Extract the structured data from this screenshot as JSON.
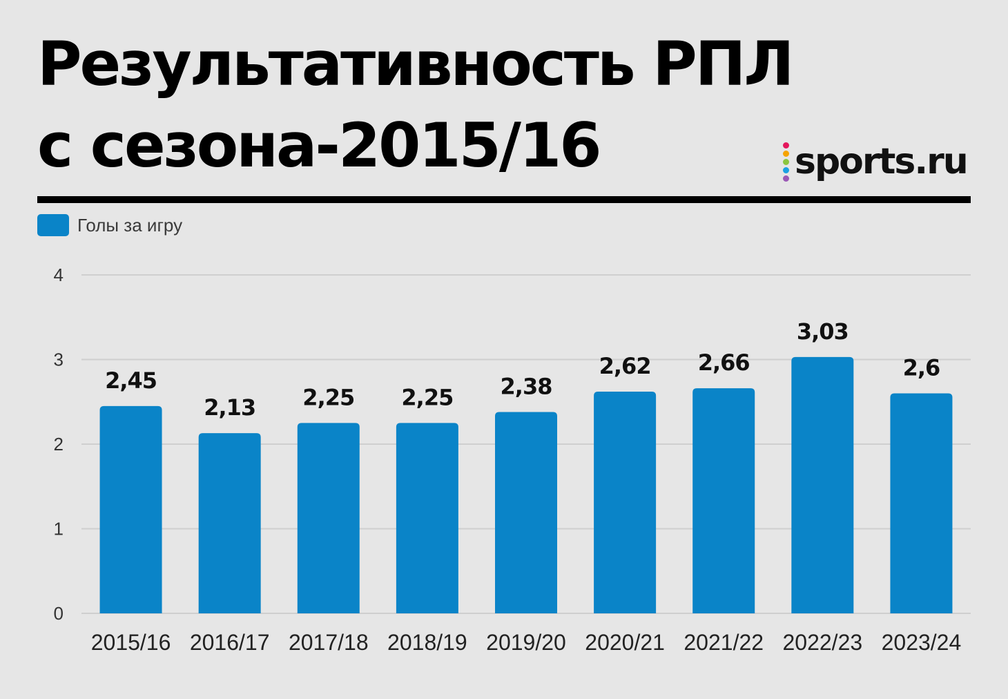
{
  "title_lines": [
    "Результативность РПЛ",
    "с сезона-2015/16"
  ],
  "logo": {
    "text": "sports.ru",
    "dot_colors": [
      "#e4175c",
      "#f5a300",
      "#8cc63f",
      "#1ba1e2",
      "#9b59b6"
    ]
  },
  "colors": {
    "bar": "#0a84c8",
    "grid": "#cfcfcf",
    "rule": "#000000",
    "background": "#e6e6e6"
  },
  "chart_data": {
    "type": "bar",
    "title": "Результативность РПЛ с сезона-2015/16",
    "xlabel": "",
    "ylabel": "",
    "legend": "top-left",
    "grid": true,
    "ylim": [
      0,
      4
    ],
    "yticks": [
      "0",
      "1",
      "2",
      "3",
      "4"
    ],
    "categories": [
      "2015/16",
      "2016/17",
      "2017/18",
      "2018/19",
      "2019/20",
      "2020/21",
      "2021/22",
      "2022/23",
      "2023/24"
    ],
    "series": [
      {
        "name": "Голы за игру",
        "values": [
          2.45,
          2.13,
          2.25,
          2.25,
          2.38,
          2.62,
          2.66,
          3.03,
          2.6
        ],
        "labels": [
          "2,45",
          "2,13",
          "2,25",
          "2,25",
          "2,38",
          "2,62",
          "2,66",
          "3,03",
          "2,6"
        ]
      }
    ]
  }
}
